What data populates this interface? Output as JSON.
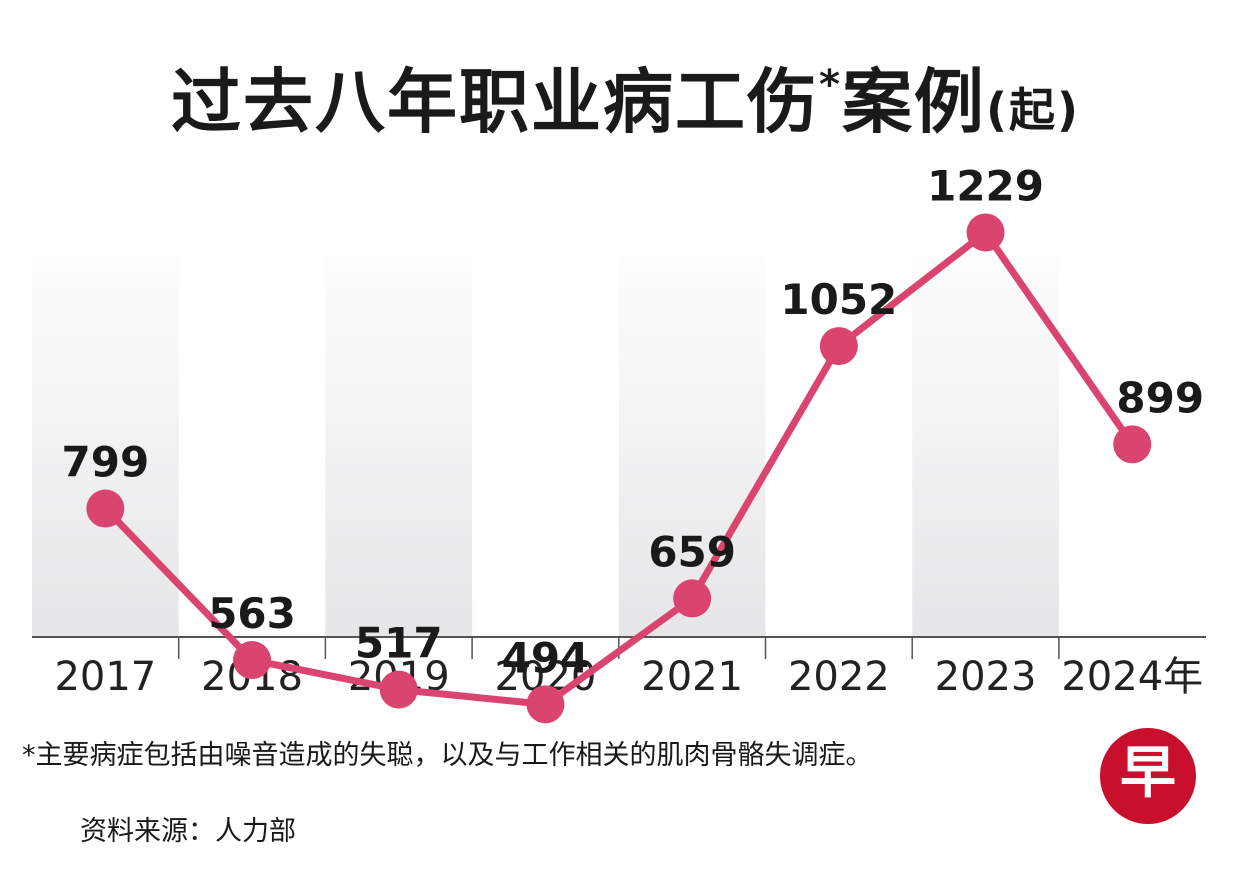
{
  "title": {
    "main": "过去八年职业病工伤",
    "marker": "*",
    "cases": "案例",
    "unit": "(起)"
  },
  "chart_data": {
    "type": "line",
    "title": "过去八年职业病工伤*案例(起)",
    "categories": [
      "2017",
      "2018",
      "2019",
      "2020",
      "2021",
      "2022",
      "2023",
      "2024年"
    ],
    "values": [
      799,
      563,
      517,
      494,
      659,
      1052,
      1229,
      899
    ],
    "xlabel": "",
    "ylabel": "",
    "grid": false,
    "line_color": "#d9456e",
    "band_color": "#e9e9eb"
  },
  "footnote": "*主要病症包括由噪音造成的失聪，以及与工作相关的肌肉骨骼失调症。",
  "source": "资料来源：人力部",
  "logo": {
    "icon": "zaobao-logo-icon",
    "glyph": "早",
    "color": "#c8102e"
  }
}
